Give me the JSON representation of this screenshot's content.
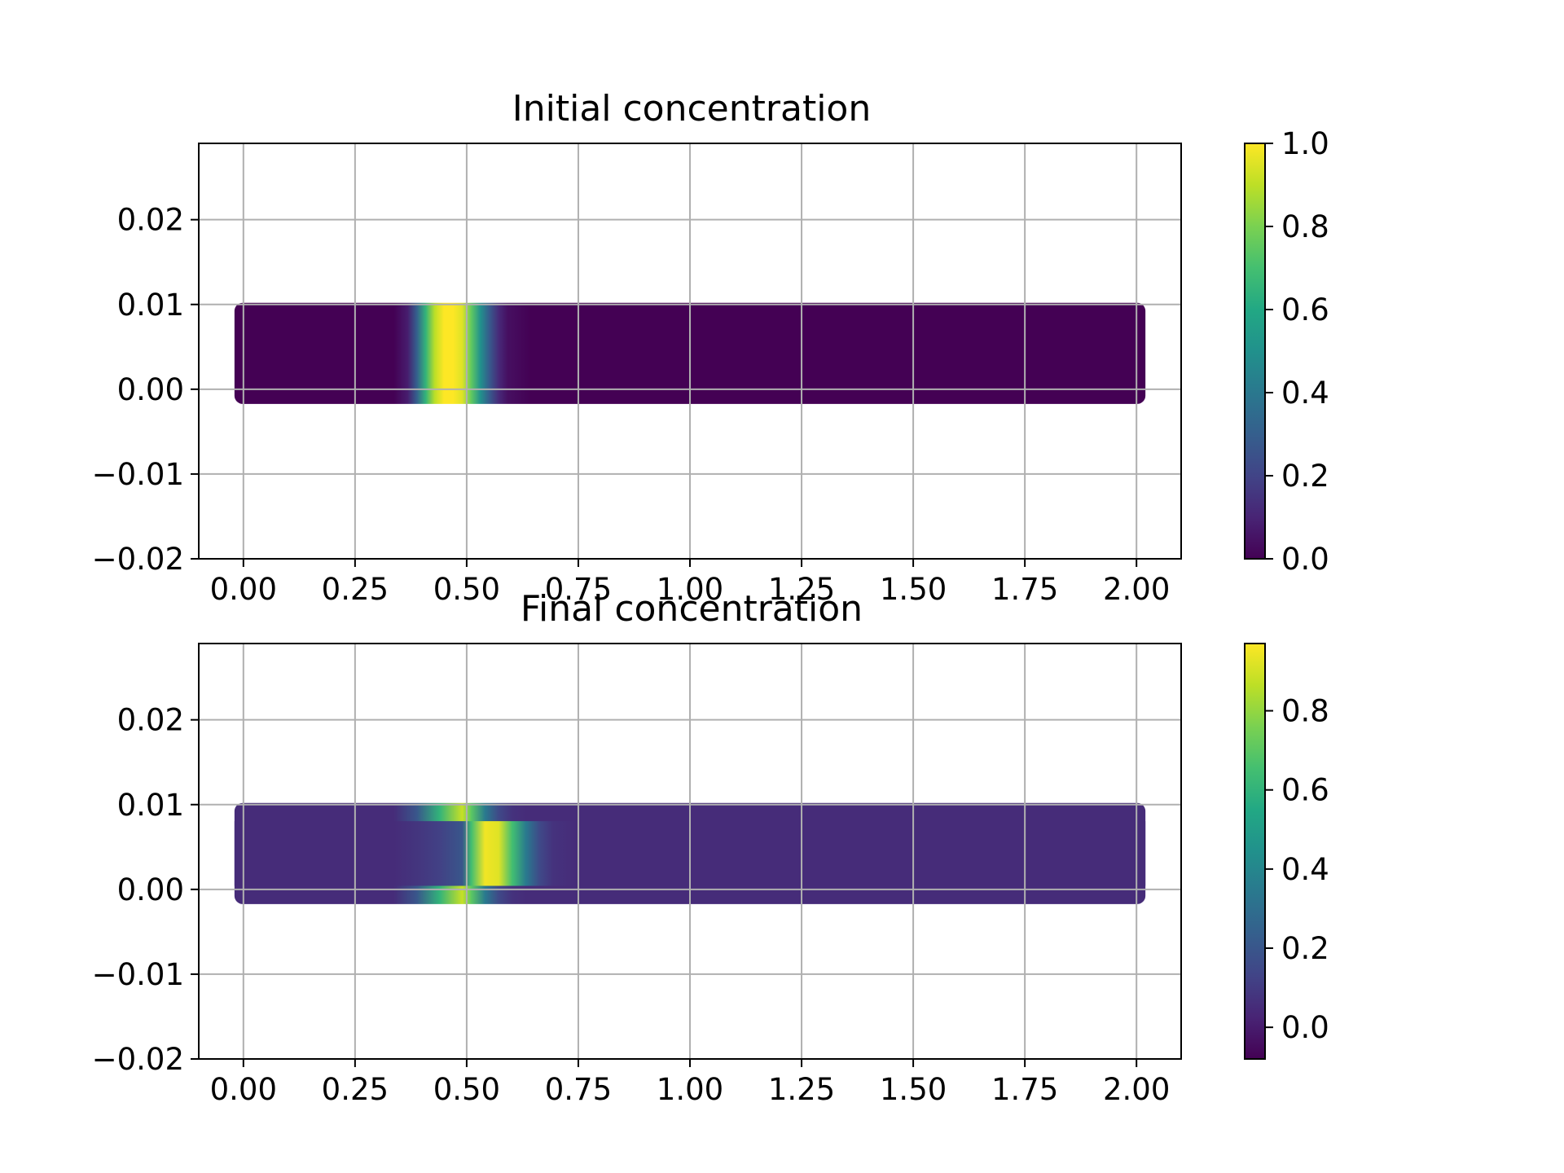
{
  "chart_data": [
    {
      "type": "heatmap",
      "title": "Initial concentration",
      "xlabel": "",
      "ylabel": "",
      "xlim": [
        -0.1,
        2.1
      ],
      "ylim": [
        -0.02,
        0.029
      ],
      "x_ticks": [
        "0.00",
        "0.25",
        "0.50",
        "0.75",
        "1.00",
        "1.25",
        "1.50",
        "1.75",
        "2.00"
      ],
      "y_ticks": [
        "0.02",
        "0.01",
        "0.00",
        "−0.01",
        "−0.02"
      ],
      "grid": true,
      "colormap": "viridis",
      "colorbar": {
        "min": 0.0,
        "max": 1.0,
        "ticks": [
          "0.0",
          "0.2",
          "0.4",
          "0.6",
          "0.8",
          "1.0"
        ]
      },
      "domain": {
        "x": [
          0.0,
          2.0
        ],
        "y": [
          0.0,
          0.01
        ]
      },
      "background_value": 0.0,
      "profile_x": [
        0.0,
        0.35,
        0.38,
        0.4,
        0.42,
        0.44,
        0.46,
        0.48,
        0.5,
        0.52,
        0.54,
        0.56,
        0.58,
        0.6,
        0.65,
        2.0
      ],
      "profile_value": [
        0.0,
        0.0,
        0.08,
        0.3,
        0.65,
        0.9,
        1.0,
        1.0,
        0.95,
        0.75,
        0.5,
        0.28,
        0.12,
        0.04,
        0.0,
        0.0
      ]
    },
    {
      "type": "heatmap",
      "title": "Final concentration",
      "xlabel": "",
      "ylabel": "",
      "xlim": [
        -0.1,
        2.1
      ],
      "ylim": [
        -0.02,
        0.029
      ],
      "x_ticks": [
        "0.00",
        "0.25",
        "0.50",
        "0.75",
        "1.00",
        "1.25",
        "1.50",
        "1.75",
        "2.00"
      ],
      "y_ticks": [
        "0.02",
        "0.01",
        "0.00",
        "−0.01",
        "−0.02"
      ],
      "grid": true,
      "colormap": "viridis",
      "colorbar": {
        "min": -0.08,
        "max": 0.97,
        "ticks": [
          "0.0",
          "0.2",
          "0.4",
          "0.6",
          "0.8"
        ]
      },
      "domain": {
        "x": [
          0.0,
          2.0
        ],
        "y": [
          0.0,
          0.01
        ]
      },
      "background_value": 0.05,
      "profile_x": [
        0.0,
        0.35,
        0.4,
        0.45,
        0.5,
        0.52,
        0.55,
        0.58,
        0.61,
        0.64,
        0.67,
        0.7,
        0.75,
        2.0
      ],
      "profile_center_value": [
        0.05,
        0.05,
        0.08,
        0.12,
        0.2,
        0.65,
        0.95,
        0.92,
        0.65,
        0.35,
        0.15,
        0.07,
        0.05,
        0.05
      ],
      "profile_edge_value": [
        0.05,
        0.05,
        0.2,
        0.6,
        0.88,
        0.7,
        0.35,
        0.15,
        0.07,
        0.05,
        0.05,
        0.05,
        0.05,
        0.05
      ]
    }
  ]
}
